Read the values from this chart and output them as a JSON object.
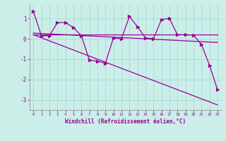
{
  "xlabel": "Windchill (Refroidissement éolien,°C)",
  "background_color": "#cceee8",
  "grid_color": "#aaddda",
  "line_color": "#990099",
  "x_values": [
    0,
    1,
    2,
    3,
    4,
    5,
    6,
    7,
    8,
    9,
    10,
    11,
    12,
    13,
    14,
    15,
    16,
    17,
    18,
    19,
    20,
    21,
    22,
    23
  ],
  "line1_y": [
    1.35,
    0.15,
    0.15,
    0.8,
    0.8,
    0.55,
    0.15,
    -1.05,
    -1.1,
    -1.2,
    0.05,
    0.0,
    1.1,
    0.6,
    0.05,
    0.0,
    0.95,
    1.0,
    0.2,
    0.2,
    0.18,
    -0.28,
    -1.3,
    -2.5
  ],
  "line2_y": [
    0.2,
    0.2,
    0.2,
    0.2,
    0.2,
    0.2,
    0.2,
    0.2,
    0.2,
    0.2,
    0.2,
    0.2,
    0.2,
    0.2,
    0.2,
    0.2,
    0.2,
    0.2,
    0.2,
    0.2,
    0.2,
    0.2,
    0.2,
    0.2
  ],
  "line3_y": [
    0.28,
    0.26,
    0.24,
    0.22,
    0.2,
    0.18,
    0.16,
    0.14,
    0.12,
    0.1,
    0.08,
    0.06,
    0.04,
    0.02,
    0.0,
    -0.02,
    -0.04,
    -0.06,
    -0.08,
    -0.1,
    -0.12,
    -0.14,
    -0.16,
    -0.18
  ],
  "line4_y": [
    0.2,
    0.05,
    -0.1,
    -0.25,
    -0.4,
    -0.55,
    -0.7,
    -0.85,
    -1.0,
    -1.15,
    -1.3,
    -1.45,
    -1.6,
    -1.75,
    -1.9,
    -2.05,
    -2.2,
    -2.35,
    -2.5,
    -2.65,
    -2.8,
    -2.95,
    -3.1,
    -3.25
  ],
  "ylim": [
    -3.5,
    1.7
  ],
  "xlim": [
    -0.5,
    23.5
  ],
  "yticks": [
    -3,
    -2,
    -1,
    0,
    1
  ],
  "xticks": [
    0,
    1,
    2,
    3,
    4,
    5,
    6,
    7,
    8,
    9,
    10,
    11,
    12,
    13,
    14,
    15,
    16,
    17,
    18,
    19,
    20,
    21,
    22,
    23
  ]
}
